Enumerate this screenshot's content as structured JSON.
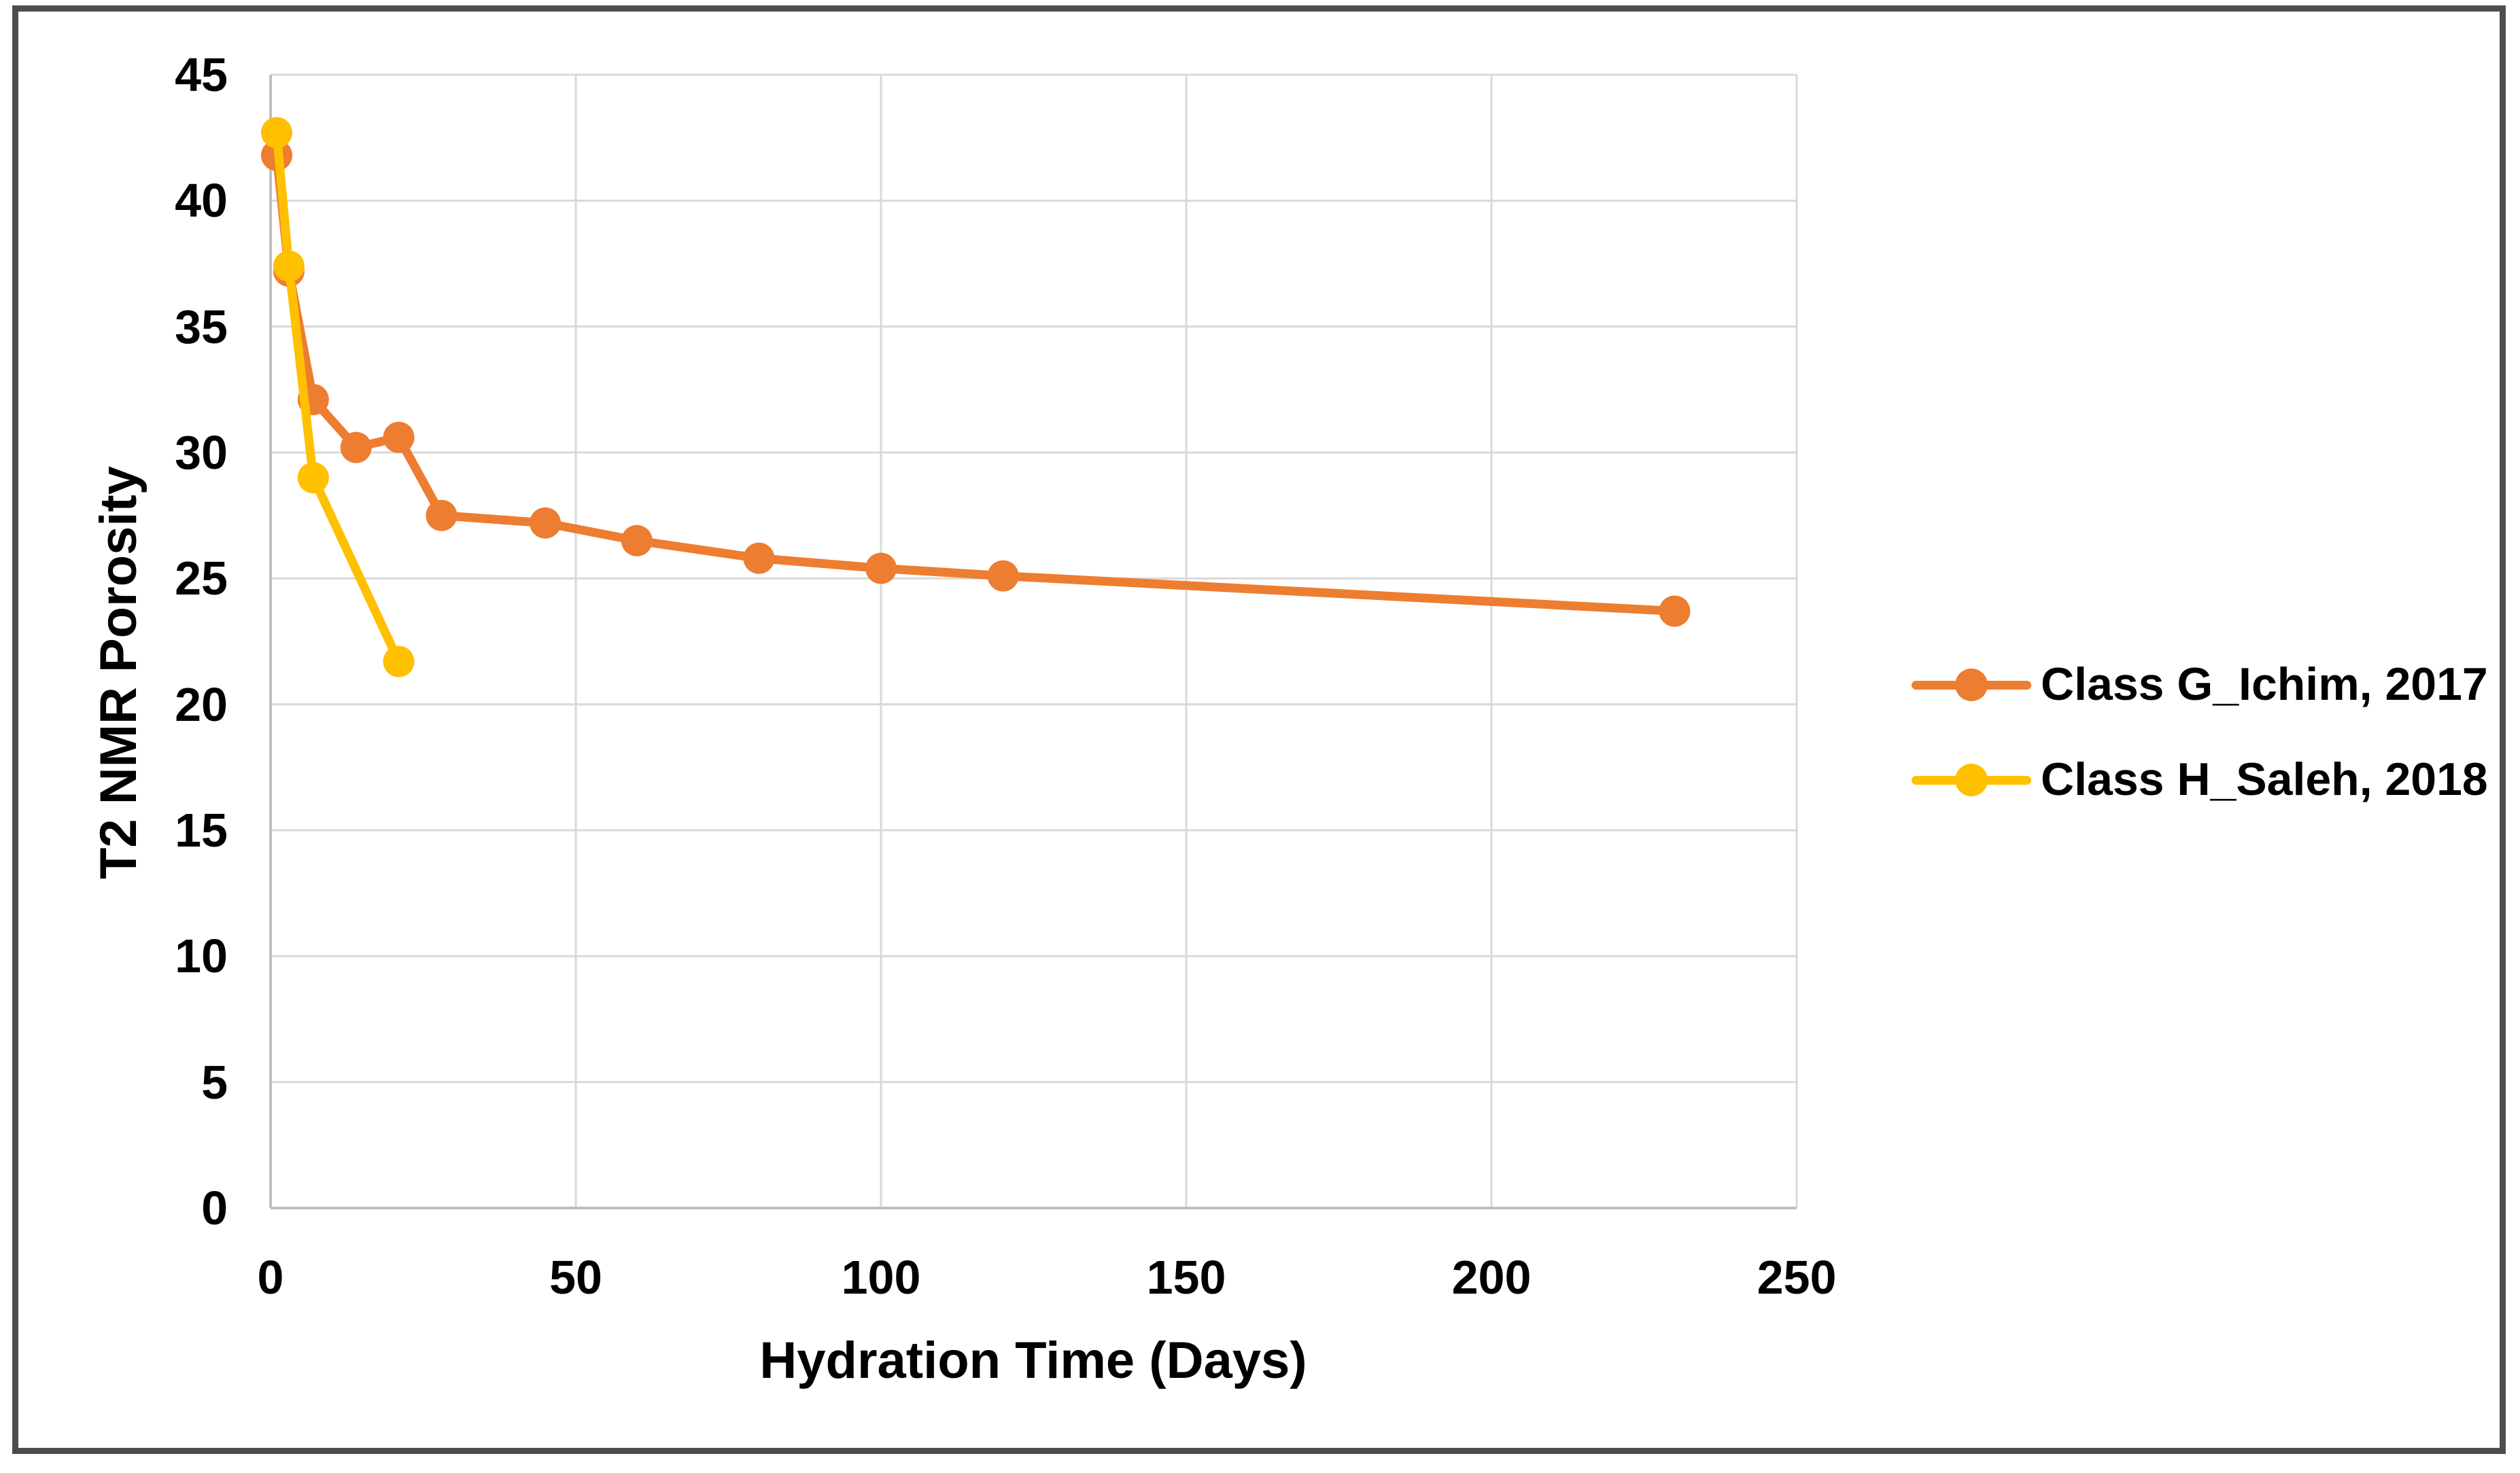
{
  "canvas": {
    "background_color": "#FFFFFF",
    "frame_color": "#4D4D4D"
  },
  "chart_data": {
    "type": "line",
    "title": "",
    "xlabel": "Hydration Time (Days)",
    "ylabel": "T2 NMR Porosity",
    "xlim": [
      0,
      250
    ],
    "ylim": [
      0,
      45
    ],
    "x_ticks": [
      0,
      50,
      100,
      150,
      200,
      250
    ],
    "y_ticks": [
      0,
      5,
      10,
      15,
      20,
      25,
      30,
      35,
      40,
      45
    ],
    "grid": true,
    "gridline_color": "#D9D9D9",
    "axis_line_color": "#BFBFBF",
    "legend_position": "right",
    "marker": "circle",
    "series": [
      {
        "name": "Class G_Ichim, 2017",
        "color": "#ED7D31",
        "x": [
          1,
          3,
          7,
          14,
          21,
          28,
          45,
          60,
          80,
          100,
          120,
          230
        ],
        "y": [
          41.8,
          37.2,
          32.1,
          30.2,
          30.6,
          27.5,
          27.2,
          26.5,
          25.8,
          25.4,
          25.1,
          23.7
        ]
      },
      {
        "name": "Class H_Saleh, 2018",
        "color": "#FFC000",
        "x": [
          1,
          3,
          7,
          21
        ],
        "y": [
          42.7,
          37.4,
          29.0,
          21.7
        ]
      }
    ]
  },
  "legend": {
    "items": [
      {
        "label": "Class G_Ichim, 2017",
        "color": "#ED7D31"
      },
      {
        "label": "Class H_Saleh, 2018",
        "color": "#FFC000"
      }
    ]
  }
}
